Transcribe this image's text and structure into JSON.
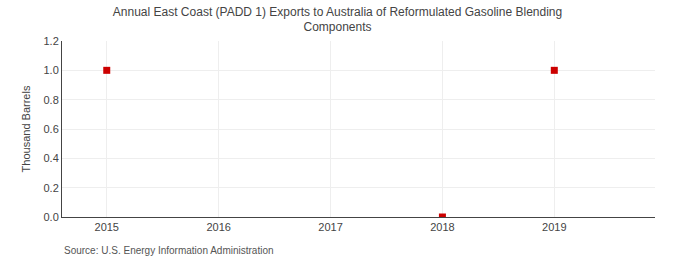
{
  "chart_data": {
    "type": "scatter",
    "title": "Annual East Coast (PADD 1) Exports to Australia of Reformulated Gasoline Blending\nComponents",
    "ylabel": "Thousand Barrels",
    "annotation": "Source: U.S. Energy Information Administration",
    "x": [
      2015,
      2018,
      2019
    ],
    "values": [
      1.0,
      0.0,
      1.0
    ],
    "color": "#cc0000",
    "marker": "square",
    "xlim": [
      2014.6,
      2019.9
    ],
    "ylim": [
      0.0,
      1.2
    ],
    "xticks": [
      2015,
      2016,
      2017,
      2018,
      2019
    ],
    "yticks": [
      {
        "value": 0.0,
        "label": "0.0"
      },
      0.2,
      0.4,
      0.6,
      0.8,
      {
        "value": 1.0,
        "label": "1.0"
      },
      1.2
    ],
    "grid": true
  }
}
